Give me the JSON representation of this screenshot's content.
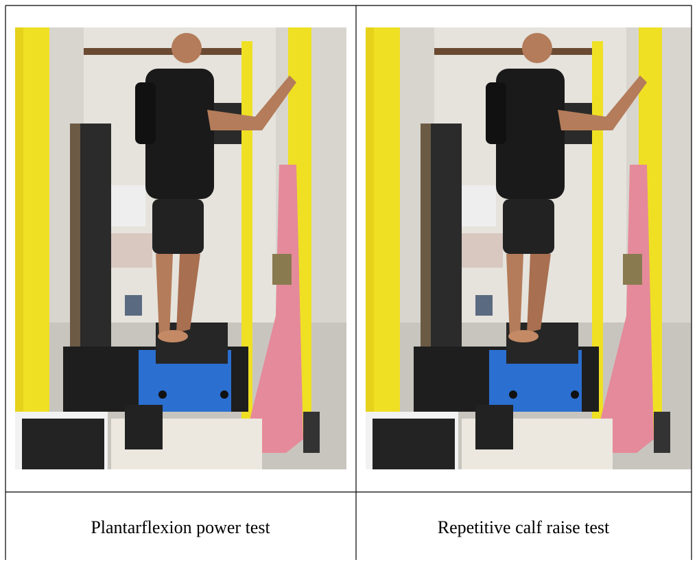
{
  "table": {
    "cells": [
      {
        "caption": "Plantarflexion power test"
      },
      {
        "caption": "Repetitive calf raise test"
      }
    ]
  }
}
